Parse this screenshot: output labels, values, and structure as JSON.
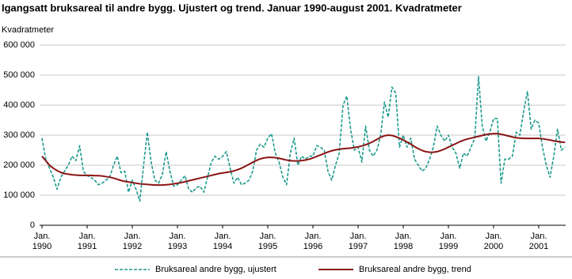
{
  "chart_data": {
    "type": "line",
    "title": "Igangsatt bruksareal til andre bygg. Ujustert og trend. Januar 1990-august 2001. Kvadratmeter",
    "y_label": "Kvadratmeter",
    "categories": [
      "Jan.\n1990",
      null,
      null,
      null,
      null,
      null,
      null,
      null,
      null,
      null,
      null,
      null,
      "Jan.\n1991",
      null,
      null,
      null,
      null,
      null,
      null,
      null,
      null,
      null,
      null,
      null,
      "Jan.\n1992",
      null,
      null,
      null,
      null,
      null,
      null,
      null,
      null,
      null,
      null,
      null,
      "Jan.\n1993",
      null,
      null,
      null,
      null,
      null,
      null,
      null,
      null,
      null,
      null,
      null,
      "Jan.\n1994",
      null,
      null,
      null,
      null,
      null,
      null,
      null,
      null,
      null,
      null,
      null,
      "Jan.\n1995",
      null,
      null,
      null,
      null,
      null,
      null,
      null,
      null,
      null,
      null,
      null,
      "Jan.\n1996",
      null,
      null,
      null,
      null,
      null,
      null,
      null,
      null,
      null,
      null,
      null,
      "Jan.\n1997",
      null,
      null,
      null,
      null,
      null,
      null,
      null,
      null,
      null,
      null,
      null,
      "Jan.\n1998",
      null,
      null,
      null,
      null,
      null,
      null,
      null,
      null,
      null,
      null,
      null,
      "Jan.\n1999",
      null,
      null,
      null,
      null,
      null,
      null,
      null,
      null,
      null,
      null,
      null,
      "Jan.\n2000",
      null,
      null,
      null,
      null,
      null,
      null,
      null,
      null,
      null,
      null,
      null,
      "Jan.\n2001",
      null,
      null,
      null,
      null,
      null,
      null,
      null
    ],
    "series": [
      {
        "name": "Bruksareal andre bygg, ujustert",
        "color": "#1b9a8c",
        "line_style": "dashed",
        "values": [
          290000,
          220000,
          190000,
          160000,
          120000,
          160000,
          180000,
          200000,
          230000,
          215000,
          265000,
          180000,
          165000,
          160000,
          150000,
          135000,
          140000,
          150000,
          160000,
          200000,
          230000,
          175000,
          180000,
          110000,
          150000,
          120000,
          80000,
          200000,
          310000,
          210000,
          150000,
          140000,
          170000,
          245000,
          180000,
          130000,
          135000,
          150000,
          165000,
          120000,
          110000,
          125000,
          130000,
          110000,
          160000,
          210000,
          230000,
          220000,
          230000,
          245000,
          190000,
          140000,
          160000,
          135000,
          140000,
          150000,
          180000,
          250000,
          270000,
          260000,
          290000,
          305000,
          240000,
          210000,
          160000,
          135000,
          240000,
          290000,
          200000,
          230000,
          220000,
          230000,
          230000,
          265000,
          260000,
          250000,
          180000,
          150000,
          200000,
          240000,
          400000,
          430000,
          320000,
          250000,
          260000,
          210000,
          330000,
          250000,
          230000,
          250000,
          300000,
          410000,
          360000,
          460000,
          440000,
          260000,
          300000,
          260000,
          290000,
          220000,
          200000,
          180000,
          190000,
          220000,
          260000,
          330000,
          300000,
          280000,
          300000,
          260000,
          240000,
          190000,
          240000,
          230000,
          260000,
          290000,
          495000,
          330000,
          280000,
          310000,
          355000,
          355000,
          140000,
          220000,
          220000,
          230000,
          310000,
          300000,
          380000,
          445000,
          320000,
          350000,
          340000,
          260000,
          200000,
          160000,
          230000,
          320000,
          250000,
          260000
        ]
      },
      {
        "name": "Bruksareal andre bygg, trend",
        "color": "#8b1414",
        "line_style": "solid",
        "values": [
          230000,
          215000,
          200000,
          190000,
          182000,
          176000,
          172000,
          170000,
          168000,
          167000,
          166000,
          166000,
          166000,
          166000,
          165000,
          165000,
          164000,
          162000,
          160000,
          157000,
          153000,
          149000,
          146000,
          144000,
          142000,
          140000,
          138000,
          137000,
          136000,
          135000,
          134000,
          134000,
          134000,
          135000,
          136000,
          138000,
          140000,
          142000,
          145000,
          148000,
          151000,
          154000,
          157000,
          160000,
          163000,
          166000,
          169000,
          172000,
          174000,
          176000,
          178000,
          181000,
          185000,
          190000,
          196000,
          203000,
          210000,
          216000,
          221000,
          224000,
          226000,
          226000,
          225000,
          223000,
          220000,
          217000,
          215000,
          214000,
          214000,
          215000,
          217000,
          220000,
          224000,
          229000,
          234000,
          239000,
          244000,
          248000,
          251000,
          253000,
          255000,
          256000,
          257000,
          259000,
          261000,
          264000,
          268000,
          273000,
          279000,
          286000,
          293000,
          298000,
          300000,
          299000,
          295000,
          290000,
          284000,
          277000,
          270000,
          262000,
          255000,
          249000,
          245000,
          243000,
          243000,
          245000,
          249000,
          254000,
          260000,
          266000,
          272000,
          278000,
          283000,
          287000,
          290000,
          293000,
          296000,
          299000,
          302000,
          304000,
          305000,
          305000,
          303000,
          300000,
          297000,
          294000,
          291000,
          290000,
          289000,
          289000,
          289000,
          289000,
          289000,
          288000,
          286000,
          284000,
          281000,
          279000,
          277000,
          276000
        ]
      }
    ],
    "ylim": [
      0,
      600000
    ],
    "yticks": [
      0,
      {
        "value": 100000,
        "label": "100 000"
      },
      {
        "value": 200000,
        "label": "200 000"
      },
      {
        "value": 300000,
        "label": "300 000"
      },
      {
        "value": 400000,
        "label": "400 000"
      },
      {
        "value": 500000,
        "label": "500 000"
      },
      {
        "value": 600000,
        "label": "600 000"
      }
    ],
    "grid": true,
    "legend": "bottom"
  }
}
